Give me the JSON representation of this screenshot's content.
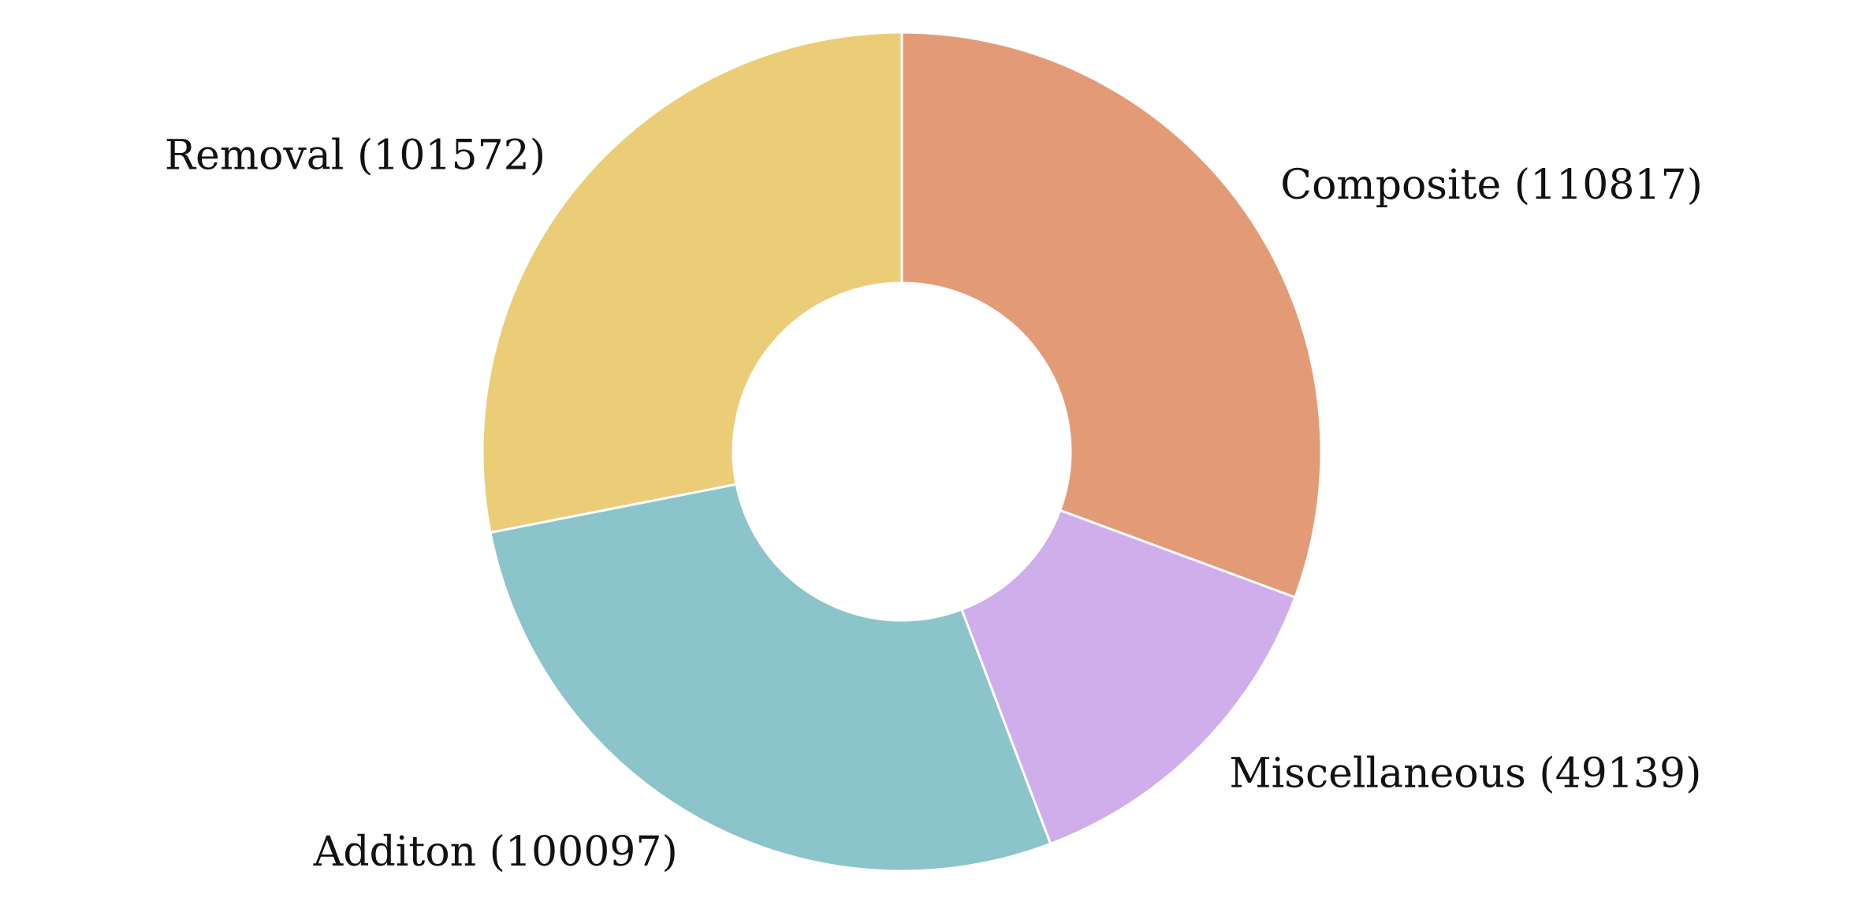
{
  "chart_data": {
    "type": "donut",
    "values": [
      110817,
      49139,
      100097,
      101572
    ],
    "value_labels": [
      "Composite (110817)",
      "Miscellaneous (49139)",
      "Additon (100097)",
      "Removal (101572)"
    ],
    "colors": [
      "#e39b77",
      "#d0aeec",
      "#8bc4ca",
      "#ebcd77"
    ]
  }
}
